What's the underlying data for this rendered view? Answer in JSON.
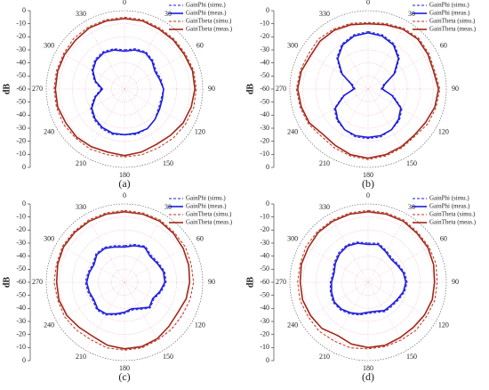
{
  "chart_data": [
    {
      "type": "polar",
      "caption": "(a)",
      "ylabel": "dB",
      "legend": "upper right",
      "theta": [
        0,
        15,
        30,
        45,
        60,
        75,
        90,
        105,
        120,
        135,
        150,
        165,
        180,
        195,
        210,
        225,
        240,
        255,
        270,
        285,
        300,
        315,
        330,
        345
      ],
      "thetaticks": [
        0,
        30,
        60,
        90,
        120,
        150,
        180,
        210,
        240,
        270,
        300,
        330
      ],
      "rlim": [
        -60,
        0
      ],
      "rticks": [
        -60,
        -50,
        -40,
        -30,
        -20,
        -10,
        0
      ],
      "grid": true,
      "series": [
        {
          "name": "GainPhi (simu.)",
          "color": "#1a1adc",
          "dashed": true,
          "values": [
            -30,
            -28,
            -27,
            -29,
            -32,
            -31,
            -30,
            -31,
            -30,
            -27,
            -25,
            -24,
            -25,
            -24,
            -25,
            -27,
            -30,
            -36,
            -42,
            -36,
            -31,
            -28,
            -27,
            -28
          ]
        },
        {
          "name": "GainPhi (meas.)",
          "color": "#1a1adc",
          "dashed": false,
          "values": [
            -31,
            -29,
            -28,
            -30,
            -33,
            -32,
            -30,
            -30,
            -29,
            -27,
            -25,
            -25,
            -25,
            -25,
            -26,
            -28,
            -31,
            -37,
            -43,
            -37,
            -32,
            -29,
            -28,
            -29
          ]
        },
        {
          "name": "GainTheta (simu.)",
          "color": "#b8341e",
          "dashed": true,
          "values": [
            -5,
            -5,
            -6,
            -6,
            -6,
            -5,
            -5,
            -5,
            -6,
            -7,
            -8,
            -8,
            -8,
            -8,
            -7,
            -7,
            -6,
            -6,
            -6,
            -6,
            -6,
            -5,
            -5,
            -5
          ]
        },
        {
          "name": "GainTheta (meas.)",
          "color": "#a02818",
          "dashed": false,
          "values": [
            -6,
            -6,
            -7,
            -7,
            -7,
            -6,
            -6,
            -7,
            -8,
            -10,
            -11,
            -10,
            -9,
            -10,
            -9,
            -8,
            -8,
            -7,
            -7,
            -7,
            -7,
            -7,
            -6,
            -6
          ]
        }
      ]
    },
    {
      "type": "polar",
      "caption": "(b)",
      "ylabel": "dB",
      "legend": "upper right",
      "theta": [
        0,
        15,
        30,
        45,
        60,
        75,
        90,
        105,
        120,
        135,
        150,
        165,
        180,
        195,
        210,
        225,
        240,
        255,
        270,
        285,
        300,
        315,
        330,
        345
      ],
      "thetaticks": [
        0,
        30,
        60,
        90,
        120,
        150,
        180,
        210,
        240,
        270,
        300,
        330
      ],
      "rlim": [
        -60,
        0
      ],
      "rticks": [
        -60,
        -50,
        -40,
        -30,
        -20,
        -10,
        0
      ],
      "grid": true,
      "series": [
        {
          "name": "GainPhi (simu.)",
          "color": "#1a1adc",
          "dashed": true,
          "values": [
            -16,
            -17,
            -20,
            -26,
            -36,
            -48,
            -50,
            -40,
            -30,
            -26,
            -24,
            -22,
            -22,
            -22,
            -24,
            -26,
            -30,
            -40,
            -50,
            -48,
            -36,
            -26,
            -20,
            -17
          ]
        },
        {
          "name": "GainPhi (meas.)",
          "color": "#1a1adc",
          "dashed": false,
          "values": [
            -17,
            -18,
            -21,
            -27,
            -37,
            -47,
            -49,
            -41,
            -31,
            -27,
            -24,
            -23,
            -23,
            -23,
            -24,
            -27,
            -31,
            -41,
            -49,
            -47,
            -37,
            -27,
            -21,
            -18
          ]
        },
        {
          "name": "GainTheta (simu.)",
          "color": "#b8341e",
          "dashed": true,
          "values": [
            -9,
            -8,
            -6,
            -5,
            -6,
            -7,
            -5,
            -6,
            -7,
            -9,
            -8,
            -7,
            -6,
            -7,
            -8,
            -9,
            -7,
            -6,
            -5,
            -6,
            -7,
            -6,
            -7,
            -8
          ]
        },
        {
          "name": "GainTheta (meas.)",
          "color": "#a02818",
          "dashed": false,
          "values": [
            -10,
            -9,
            -7,
            -6,
            -7,
            -8,
            -6,
            -7,
            -9,
            -10,
            -9,
            -8,
            -7,
            -8,
            -10,
            -11,
            -8,
            -7,
            -6,
            -7,
            -9,
            -8,
            -8,
            -9
          ]
        }
      ]
    },
    {
      "type": "polar",
      "caption": "(c)",
      "ylabel": "dB",
      "legend": "upper right",
      "theta": [
        0,
        15,
        30,
        45,
        60,
        75,
        90,
        105,
        120,
        135,
        150,
        165,
        180,
        195,
        210,
        225,
        240,
        255,
        270,
        285,
        300,
        315,
        330,
        345
      ],
      "thetaticks": [
        0,
        30,
        60,
        90,
        120,
        150,
        180,
        210,
        240,
        270,
        300,
        330
      ],
      "rlim": [
        -60,
        0
      ],
      "rticks": [
        -60,
        -50,
        -40,
        -30,
        -20,
        -10,
        0
      ],
      "grid": true,
      "series": [
        {
          "name": "GainPhi (simu.)",
          "color": "#1a1adc",
          "dashed": true,
          "values": [
            -32,
            -30,
            -28,
            -31,
            -30,
            -28,
            -28,
            -31,
            -34,
            -32,
            -36,
            -38,
            -36,
            -34,
            -31,
            -30,
            -32,
            -31,
            -30,
            -31,
            -32,
            -29,
            -29,
            -31
          ]
        },
        {
          "name": "GainPhi (meas.)",
          "color": "#1a1adc",
          "dashed": false,
          "values": [
            -33,
            -31,
            -29,
            -32,
            -31,
            -29,
            -29,
            -32,
            -35,
            -33,
            -37,
            -39,
            -37,
            -35,
            -32,
            -31,
            -33,
            -32,
            -31,
            -32,
            -33,
            -30,
            -30,
            -32
          ]
        },
        {
          "name": "GainTheta (simu.)",
          "color": "#b8341e",
          "dashed": true,
          "values": [
            -5,
            -5,
            -5,
            -6,
            -6,
            -7,
            -7,
            -8,
            -9,
            -9,
            -9,
            -8,
            -8,
            -8,
            -9,
            -8,
            -7,
            -7,
            -6,
            -6,
            -5,
            -5,
            -5,
            -5
          ]
        },
        {
          "name": "GainTheta (meas.)",
          "color": "#a02818",
          "dashed": false,
          "values": [
            -6,
            -6,
            -6,
            -7,
            -8,
            -9,
            -10,
            -11,
            -13,
            -12,
            -10,
            -9,
            -9,
            -10,
            -12,
            -11,
            -9,
            -8,
            -8,
            -7,
            -6,
            -6,
            -6,
            -6
          ]
        }
      ]
    },
    {
      "type": "polar",
      "caption": "(d)",
      "ylabel": "dB",
      "legend": "upper right",
      "theta": [
        0,
        15,
        30,
        45,
        60,
        75,
        90,
        105,
        120,
        135,
        150,
        165,
        180,
        195,
        210,
        225,
        240,
        255,
        270,
        285,
        300,
        315,
        330,
        345
      ],
      "thetaticks": [
        0,
        30,
        60,
        90,
        120,
        150,
        180,
        210,
        240,
        270,
        300,
        330
      ],
      "rlim": [
        -60,
        0
      ],
      "rticks": [
        -60,
        -50,
        -40,
        -30,
        -20,
        -10,
        0
      ],
      "grid": true,
      "series": [
        {
          "name": "GainPhi (simu.)",
          "color": "#1a1adc",
          "dashed": true,
          "values": [
            -30,
            -29,
            -32,
            -34,
            -33,
            -31,
            -30,
            -31,
            -33,
            -34,
            -34,
            -36,
            -36,
            -34,
            -32,
            -30,
            -29,
            -30,
            -31,
            -32,
            -30,
            -28,
            -27,
            -28
          ]
        },
        {
          "name": "GainPhi (meas.)",
          "color": "#1a1adc",
          "dashed": false,
          "values": [
            -31,
            -30,
            -33,
            -35,
            -34,
            -32,
            -31,
            -32,
            -34,
            -35,
            -35,
            -37,
            -37,
            -35,
            -33,
            -31,
            -30,
            -31,
            -32,
            -33,
            -31,
            -29,
            -28,
            -29
          ]
        },
        {
          "name": "GainTheta (simu.)",
          "color": "#b8341e",
          "dashed": true,
          "values": [
            -5,
            -5,
            -5,
            -6,
            -6,
            -6,
            -7,
            -7,
            -8,
            -8,
            -9,
            -9,
            -9,
            -8,
            -8,
            -7,
            -7,
            -6,
            -6,
            -6,
            -5,
            -5,
            -5,
            -5
          ]
        },
        {
          "name": "GainTheta (meas.)",
          "color": "#a02818",
          "dashed": false,
          "values": [
            -6,
            -6,
            -6,
            -7,
            -7,
            -8,
            -9,
            -9,
            -10,
            -11,
            -11,
            -10,
            -10,
            -11,
            -13,
            -10,
            -9,
            -8,
            -8,
            -7,
            -7,
            -6,
            -6,
            -6
          ]
        }
      ]
    }
  ]
}
